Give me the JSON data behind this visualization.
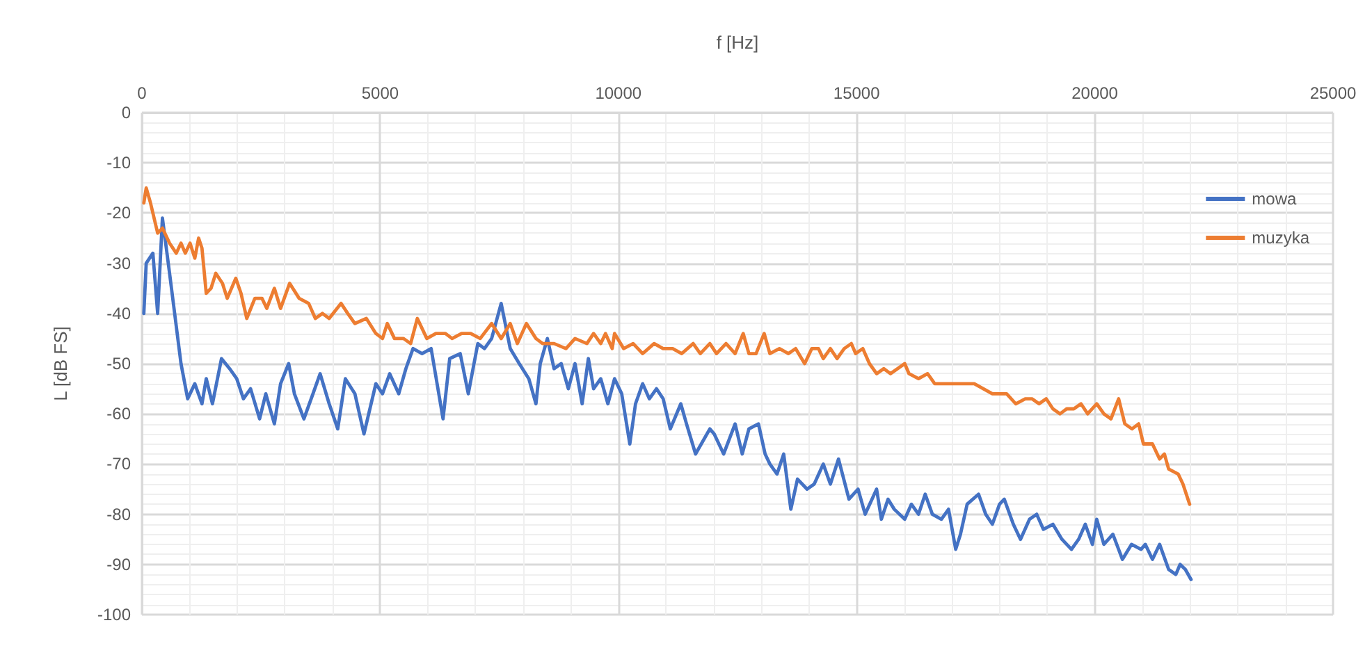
{
  "chart_data": {
    "type": "line",
    "xlabel": "f [Hz]",
    "ylabel": "L [dB FS]",
    "xlim": [
      0,
      25000
    ],
    "xticks": [
      0,
      5000,
      10000,
      15000,
      20000,
      25000
    ],
    "ylim": [
      -100,
      0
    ],
    "yticks": [
      -100,
      -90,
      -80,
      -70,
      -60,
      -50,
      -40,
      -30,
      -20,
      -10,
      0
    ],
    "grid": true,
    "legend": "top right",
    "marker": "none",
    "line_style": "solid",
    "series": [
      {
        "name": "mowa",
        "color": "#4472c4",
        "x": [
          40,
          90,
          230,
          330,
          430,
          580,
          820,
          960,
          1110,
          1260,
          1350,
          1480,
          1670,
          1840,
          1990,
          2130,
          2280,
          2470,
          2600,
          2780,
          2910,
          3080,
          3200,
          3400,
          3590,
          3740,
          3930,
          4110,
          4270,
          4470,
          4660,
          4910,
          5050,
          5200,
          5390,
          5540,
          5690,
          5880,
          6070,
          6320,
          6460,
          6680,
          6850,
          7050,
          7190,
          7340,
          7540,
          7730,
          7920,
          8120,
          8270,
          8360,
          8510,
          8650,
          8800,
          8950,
          9090,
          9240,
          9370,
          9480,
          9630,
          9780,
          9920,
          10070,
          10240,
          10360,
          10510,
          10650,
          10800,
          10940,
          11090,
          11310,
          11430,
          11620,
          11920,
          12010,
          12210,
          12450,
          12600,
          12740,
          12940,
          13080,
          13180,
          13330,
          13470,
          13620,
          13760,
          13960,
          14110,
          14300,
          14450,
          14620,
          14840,
          15030,
          15180,
          15420,
          15520,
          15660,
          15790,
          16010,
          16150,
          16300,
          16440,
          16590,
          16780,
          16930,
          17080,
          17180,
          17320,
          17560,
          17710,
          17850,
          18000,
          18100,
          18290,
          18440,
          18630,
          18780,
          18920,
          19120,
          19310,
          19510,
          19660,
          19800,
          19950,
          20040,
          20190,
          20380,
          20580,
          20770,
          20970,
          21060,
          21210,
          21360,
          21550,
          21700,
          21790,
          21900,
          22020
        ],
        "values": [
          -40,
          -30,
          -28,
          -40,
          -21,
          -32,
          -50,
          -57,
          -54,
          -58,
          -53,
          -58,
          -49,
          -51,
          -53,
          -57,
          -55,
          -61,
          -56,
          -62,
          -54,
          -50,
          -56,
          -61,
          -56,
          -52,
          -58,
          -63,
          -53,
          -56,
          -64,
          -54,
          -56,
          -52,
          -56,
          -51,
          -47,
          -48,
          -47,
          -61,
          -49,
          -48,
          -56,
          -46,
          -47,
          -45,
          -38,
          -47,
          -50,
          -53,
          -58,
          -50,
          -45,
          -51,
          -50,
          -55,
          -50,
          -58,
          -49,
          -55,
          -53,
          -58,
          -53,
          -56,
          -66,
          -58,
          -54,
          -57,
          -55,
          -57,
          -63,
          -58,
          -62,
          -68,
          -63,
          -64,
          -68,
          -62,
          -68,
          -63,
          -62,
          -68,
          -70,
          -72,
          -68,
          -79,
          -73,
          -75,
          -74,
          -70,
          -74,
          -69,
          -77,
          -75,
          -80,
          -75,
          -81,
          -77,
          -79,
          -81,
          -78,
          -80,
          -76,
          -80,
          -81,
          -79,
          -87,
          -84,
          -78,
          -76,
          -80,
          -82,
          -78,
          -77,
          -82,
          -85,
          -81,
          -80,
          -83,
          -82,
          -85,
          -87,
          -85,
          -82,
          -86,
          -81,
          -86,
          -84,
          -89,
          -86,
          -87,
          -86,
          -89,
          -86,
          -91,
          -92,
          -90,
          -91,
          -93
        ]
      },
      {
        "name": "muzyka",
        "color": "#ed7d31",
        "x": [
          40,
          90,
          180,
          330,
          430,
          580,
          720,
          820,
          910,
          1010,
          1110,
          1190,
          1260,
          1350,
          1450,
          1550,
          1690,
          1790,
          1970,
          2080,
          2200,
          2370,
          2520,
          2620,
          2780,
          2910,
          3100,
          3300,
          3500,
          3640,
          3790,
          3930,
          4180,
          4320,
          4470,
          4710,
          4910,
          5050,
          5150,
          5300,
          5490,
          5640,
          5780,
          5980,
          6170,
          6370,
          6510,
          6710,
          6900,
          7100,
          7340,
          7540,
          7730,
          7880,
          8070,
          8270,
          8410,
          8650,
          8900,
          9090,
          9340,
          9480,
          9630,
          9730,
          9870,
          9920,
          10110,
          10310,
          10510,
          10750,
          10940,
          11140,
          11330,
          11570,
          11720,
          11920,
          12060,
          12260,
          12450,
          12620,
          12740,
          12890,
          13060,
          13180,
          13380,
          13570,
          13720,
          13910,
          14060,
          14200,
          14300,
          14450,
          14590,
          14740,
          14890,
          14980,
          15130,
          15270,
          15420,
          15570,
          15710,
          15860,
          16010,
          16100,
          16300,
          16490,
          16640,
          16830,
          16980,
          17120,
          17270,
          17470,
          17660,
          17850,
          18000,
          18150,
          18340,
          18540,
          18680,
          18830,
          18980,
          19120,
          19270,
          19410,
          19560,
          19710,
          19850,
          20040,
          20190,
          20340,
          20500,
          20630,
          20780,
          20920,
          21020,
          21210,
          21360,
          21460,
          21550,
          21750,
          21850,
          21990
        ],
        "values": [
          -18,
          -15,
          -18,
          -24,
          -23,
          -26,
          -28,
          -26,
          -28,
          -26,
          -29,
          -25,
          -27,
          -36,
          -35,
          -32,
          -34,
          -37,
          -33,
          -36,
          -41,
          -37,
          -37,
          -39,
          -35,
          -39,
          -34,
          -37,
          -38,
          -41,
          -40,
          -41,
          -38,
          -40,
          -42,
          -41,
          -44,
          -45,
          -42,
          -45,
          -45,
          -46,
          -41,
          -45,
          -44,
          -44,
          -45,
          -44,
          -44,
          -45,
          -42,
          -45,
          -42,
          -46,
          -42,
          -45,
          -46,
          -46,
          -47,
          -45,
          -46,
          -44,
          -46,
          -44,
          -47,
          -44,
          -47,
          -46,
          -48,
          -46,
          -47,
          -47,
          -48,
          -46,
          -48,
          -46,
          -48,
          -46,
          -48,
          -44,
          -48,
          -48,
          -44,
          -48,
          -47,
          -48,
          -47,
          -50,
          -47,
          -47,
          -49,
          -47,
          -49,
          -47,
          -46,
          -48,
          -47,
          -50,
          -52,
          -51,
          -52,
          -51,
          -50,
          -52,
          -53,
          -52,
          -54,
          -54,
          -54,
          -54,
          -54,
          -54,
          -55,
          -56,
          -56,
          -56,
          -58,
          -57,
          -57,
          -58,
          -57,
          -59,
          -60,
          -59,
          -59,
          -58,
          -60,
          -58,
          -60,
          -61,
          -57,
          -62,
          -63,
          -62,
          -66,
          -66,
          -69,
          -68,
          -71,
          -72,
          -74,
          -78
        ]
      }
    ]
  }
}
